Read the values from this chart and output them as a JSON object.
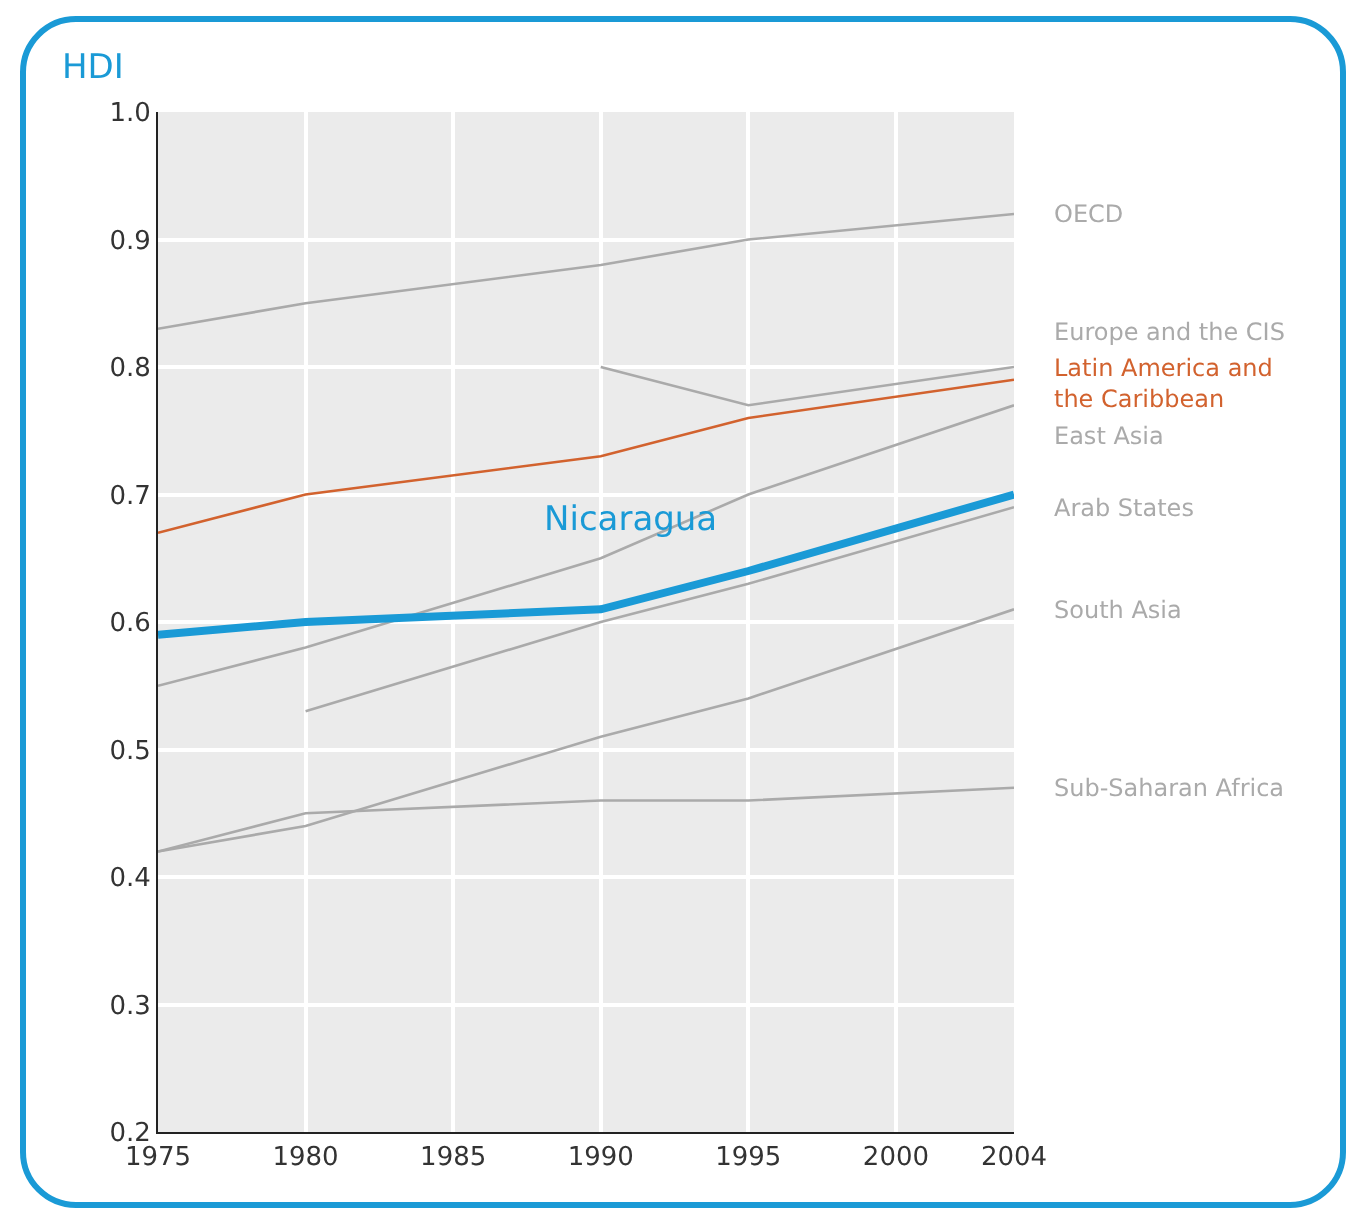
{
  "chart_data": {
    "type": "line",
    "ylabel": "HDI",
    "x": [
      1975,
      1980,
      1990,
      1995,
      2004
    ],
    "xlim": [
      1975,
      2004
    ],
    "xticks": [
      1975,
      1980,
      1985,
      1990,
      1995,
      2000,
      2004
    ],
    "ylim": [
      0.2,
      1.0
    ],
    "yticks": [
      {
        "value": 0.2,
        "label": "0.2"
      },
      {
        "value": 0.3,
        "label": "0.3"
      },
      {
        "value": 0.4,
        "label": "0.4"
      },
      {
        "value": 0.5,
        "label": "0.5"
      },
      {
        "value": 0.6,
        "label": "0.6"
      },
      {
        "value": 0.7,
        "label": "0.7"
      },
      {
        "value": 0.8,
        "label": "0.8"
      },
      {
        "value": 0.9,
        "label": "0.9"
      },
      {
        "value": 1.0,
        "label": "1.0"
      }
    ],
    "grid": true,
    "legend": false,
    "marker": "none",
    "line_style": "solid",
    "series": [
      {
        "name": "OECD",
        "color": "#aaaaaa",
        "values": [
          0.83,
          0.85,
          0.88,
          0.9,
          0.92
        ]
      },
      {
        "name": "Europe and the CIS",
        "color": "#aaaaaa",
        "values": [
          null,
          null,
          0.8,
          0.77,
          0.8
        ]
      },
      {
        "name": "Latin America and the Caribbean",
        "color": "#d2622e",
        "values": [
          0.67,
          0.7,
          0.73,
          0.76,
          0.79
        ]
      },
      {
        "name": "East Asia",
        "color": "#aaaaaa",
        "values": [
          0.55,
          0.58,
          0.65,
          0.7,
          0.77
        ]
      },
      {
        "name": "Arab States",
        "color": "#aaaaaa",
        "values": [
          null,
          0.53,
          0.6,
          0.63,
          0.69
        ]
      },
      {
        "name": "South Asia",
        "color": "#aaaaaa",
        "values": [
          0.42,
          0.44,
          0.51,
          0.54,
          0.61
        ]
      },
      {
        "name": "Sub-Saharan Africa",
        "color": "#aaaaaa",
        "values": [
          0.42,
          0.45,
          0.46,
          0.46,
          0.47
        ]
      },
      {
        "name": "Nicaragua",
        "color": "#1a9ad6",
        "values": [
          0.59,
          0.6,
          0.61,
          0.64,
          0.7
        ]
      }
    ]
  }
}
